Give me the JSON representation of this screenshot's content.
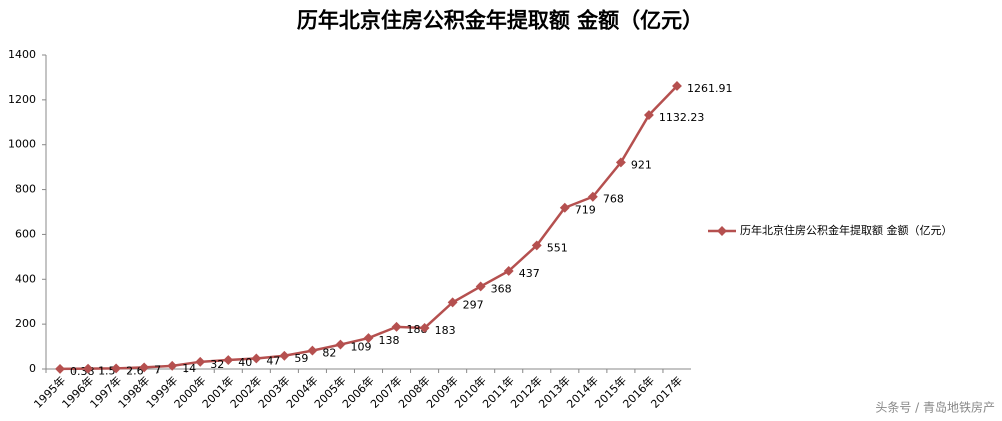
{
  "chart_data": {
    "type": "line",
    "title": "历年北京住房公积金年提取额 金额（亿元）",
    "categories": [
      "1995年",
      "1996年",
      "1997年",
      "1998年",
      "1999年",
      "2000年",
      "2001年",
      "2002年",
      "2003年",
      "2004年",
      "2005年",
      "2006年",
      "2007年",
      "2008年",
      "2009年",
      "2010年",
      "2011年",
      "2012年",
      "2013年",
      "2014年",
      "2015年",
      "2016年",
      "2017年"
    ],
    "series": [
      {
        "name": "历年北京住房公积金年提取额 金额（亿元）",
        "color": "#b5504f",
        "values": [
          0.38,
          1.5,
          2.6,
          7,
          14,
          32,
          40,
          47,
          59,
          82,
          109,
          138,
          188,
          183,
          297,
          368,
          437,
          551,
          719,
          768,
          921,
          1132.23,
          1261.91
        ]
      }
    ],
    "ylim": [
      0,
      1400
    ],
    "yticks": [
      0,
      200,
      400,
      600,
      800,
      1000,
      1200,
      1400
    ],
    "grid": false,
    "legend": "right",
    "watermark": "头条号 / 青岛地铁房产"
  }
}
